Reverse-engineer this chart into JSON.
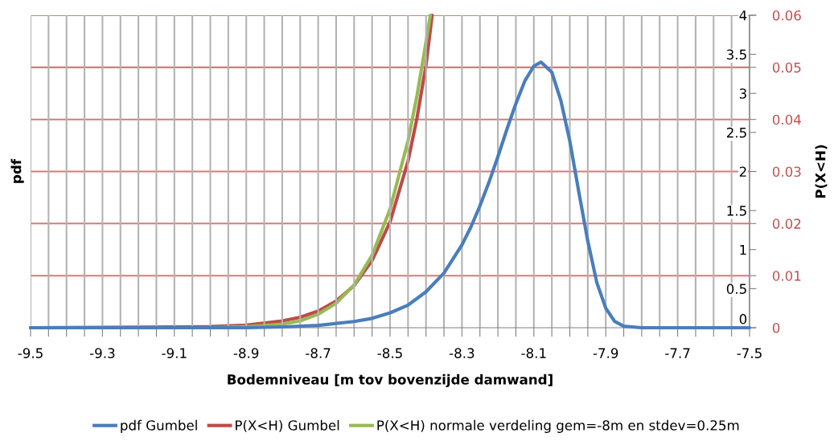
{
  "chart_data": {
    "type": "line",
    "xlabel": "Bodemniveau [m tov bovenzijde damwand]",
    "ylabel": "pdf",
    "y2label": "P(X<H)",
    "xlim": [
      -9.5,
      -7.5
    ],
    "xticks": [
      -9.5,
      {
        "value": -9.45,
        "label": null
      },
      {
        "value": -9.4,
        "label": null
      },
      {
        "value": -9.35,
        "label": null
      },
      -9.3,
      {
        "value": -9.25,
        "label": null
      },
      {
        "value": -9.2,
        "label": null
      },
      {
        "value": -9.15,
        "label": null
      },
      -9.1,
      {
        "value": -9.05,
        "label": null
      },
      {
        "value": -9.0,
        "label": null
      },
      {
        "value": -8.95,
        "label": null
      },
      -8.9,
      {
        "value": -8.85,
        "label": null
      },
      {
        "value": -8.8,
        "label": null
      },
      {
        "value": -8.75,
        "label": null
      },
      -8.7,
      {
        "value": -8.65,
        "label": null
      },
      {
        "value": -8.6,
        "label": null
      },
      {
        "value": -8.55,
        "label": null
      },
      -8.5,
      {
        "value": -8.45,
        "label": null
      },
      {
        "value": -8.4,
        "label": null
      },
      {
        "value": -8.35,
        "label": null
      },
      -8.3,
      {
        "value": -8.25,
        "label": null
      },
      {
        "value": -8.2,
        "label": null
      },
      {
        "value": -8.15,
        "label": null
      },
      -8.1,
      {
        "value": -8.05,
        "label": null
      },
      {
        "value": -8.0,
        "label": null
      },
      {
        "value": -7.95,
        "label": null
      },
      -7.9,
      {
        "value": -7.85,
        "label": null
      },
      {
        "value": -7.8,
        "label": null
      },
      {
        "value": -7.75,
        "label": null
      },
      -7.7,
      {
        "value": -7.65,
        "label": null
      },
      {
        "value": -7.6,
        "label": null
      },
      {
        "value": -7.55,
        "label": null
      },
      -7.5
    ],
    "ylim": [
      0,
      4
    ],
    "yticks": [
      0,
      0.5,
      1,
      1.5,
      2,
      2.5,
      3,
      3.5,
      4
    ],
    "y2lim": [
      0,
      0.06
    ],
    "y2ticks": [
      0,
      0.01,
      0.02,
      0.03,
      0.04,
      0.05,
      0.06
    ],
    "grid": true,
    "legend": "bottom",
    "marker": "none",
    "line_style": "solid",
    "series": [
      {
        "name": "pdf Gumbel",
        "color": "#4a7ebb",
        "x": [
          -9.5,
          -9.0,
          -8.9,
          -8.8,
          -8.7,
          -8.6,
          -8.55,
          -8.5,
          -8.45,
          -8.4,
          -8.35,
          -8.3,
          -8.275,
          -8.25,
          -8.225,
          -8.2,
          -8.175,
          -8.15,
          -8.125,
          -8.1,
          -8.08,
          -8.05,
          -8.025,
          -8.0,
          -7.975,
          -7.95,
          -7.925,
          -7.9,
          -7.875,
          -7.85,
          -7.8,
          -7.5
        ],
        "values": [
          0,
          0,
          0,
          0.01,
          0.03,
          0.08,
          0.12,
          0.19,
          0.29,
          0.46,
          0.7,
          1.06,
          1.29,
          1.56,
          1.86,
          2.19,
          2.54,
          2.87,
          3.16,
          3.35,
          3.4,
          3.27,
          2.91,
          2.39,
          1.74,
          1.11,
          0.58,
          0.25,
          0.08,
          0.02,
          0,
          0
        ]
      },
      {
        "name": "P(X<H) Gumbel",
        "color": "#be4b48",
        "axis": "y2",
        "x": [
          -9.5,
          -9.0,
          -8.9,
          -8.8,
          -8.75,
          -8.7,
          -8.65,
          -8.6,
          -8.55,
          -8.5,
          -8.45,
          -8.425,
          -8.4,
          -8.383
        ],
        "values": [
          0,
          0.0002,
          0.0005,
          0.0013,
          0.002,
          0.0032,
          0.0051,
          0.0081,
          0.0129,
          0.0203,
          0.032,
          0.0403,
          0.0504,
          0.06
        ]
      },
      {
        "name": "P(X<H) normale verdeling gem=-8m en stdev=0.25m",
        "color": "#98b954",
        "axis": "y2",
        "x": [
          -9.5,
          -9.0,
          -8.9,
          -8.8,
          -8.75,
          -8.7,
          -8.65,
          -8.6,
          -8.55,
          -8.5,
          -8.45,
          -8.425,
          -8.4,
          -8.388
        ],
        "values": [
          0,
          0,
          0.0002,
          0.0007,
          0.0013,
          0.0026,
          0.0047,
          0.0082,
          0.0139,
          0.0228,
          0.0359,
          0.0446,
          0.0548,
          0.06
        ]
      }
    ]
  }
}
